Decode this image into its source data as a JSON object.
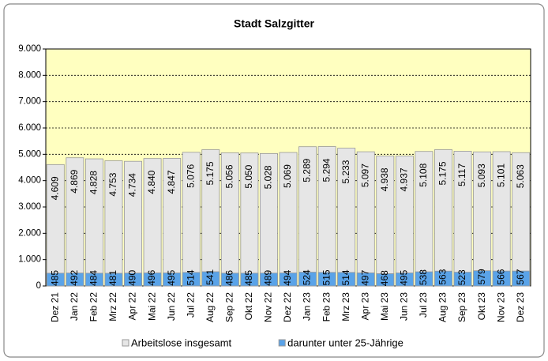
{
  "chart_data": {
    "type": "bar",
    "title": "Stadt Salzgitter",
    "categories": [
      "Dez 21",
      "Jan 22",
      "Feb 22",
      "Mrz 22",
      "Apr 22",
      "Mai 22",
      "Jun 22",
      "Jul 22",
      "Aug 22",
      "Sep 22",
      "Okt 22",
      "Nov 22",
      "Dez 22",
      "Jan 23",
      "Feb 23",
      "Mrz 23",
      "Apr 23",
      "Mai 23",
      "Jun 23",
      "Jul 23",
      "Aug 23",
      "Sep 23",
      "Okt 23",
      "Nov 23",
      "Dez 23"
    ],
    "series": [
      {
        "name": "Arbeitslose insgesamt",
        "color": "#e6e6e6",
        "values": [
          4609,
          4869,
          4828,
          4753,
          4734,
          4840,
          4847,
          5076,
          5175,
          5056,
          5050,
          5028,
          5069,
          5289,
          5294,
          5233,
          5097,
          4938,
          4937,
          5108,
          5175,
          5117,
          5093,
          5101,
          5063
        ],
        "value_labels": [
          "4.609",
          "4.869",
          "4.828",
          "4.753",
          "4.734",
          "4.840",
          "4.847",
          "5.076",
          "5.175",
          "5.056",
          "5.050",
          "5.028",
          "5.069",
          "5.289",
          "5.294",
          "5.233",
          "5.097",
          "4.938",
          "4.937",
          "5.108",
          "5.175",
          "5.117",
          "5.093",
          "5.101",
          "5.063"
        ]
      },
      {
        "name": "darunter unter 25-Jährige",
        "color": "#5aa3e8",
        "values": [
          485,
          492,
          484,
          481,
          490,
          496,
          495,
          514,
          541,
          486,
          485,
          489,
          494,
          524,
          515,
          514,
          497,
          468,
          495,
          538,
          563,
          523,
          579,
          566,
          567
        ]
      }
    ],
    "ylim": [
      0,
      9000
    ],
    "yticks": [
      0,
      {
        "value": 1000,
        "label": "1.000"
      },
      {
        "value": 2000,
        "label": "2.000"
      },
      {
        "value": 3000,
        "label": "3.000"
      },
      {
        "value": 4000,
        "label": "4.000"
      },
      {
        "value": 5000,
        "label": "5.000"
      },
      {
        "value": 6000,
        "label": "6.000"
      },
      {
        "value": 7000,
        "label": "7.000"
      },
      {
        "value": 8000,
        "label": "8.000"
      },
      {
        "value": 9000,
        "label": "9.000"
      }
    ],
    "grid": true,
    "legend": "bottom",
    "plot_background": "#ffffc0"
  }
}
